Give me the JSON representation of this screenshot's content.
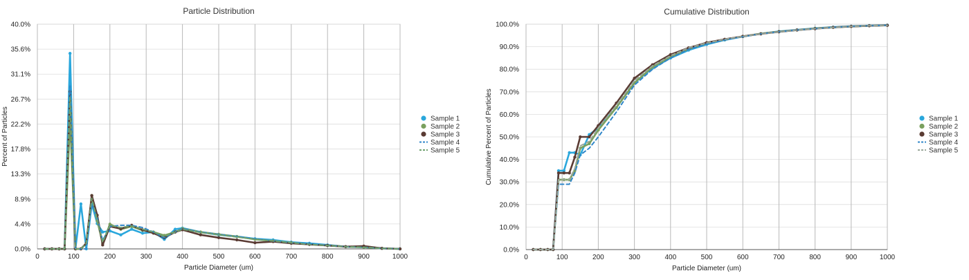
{
  "chart_data": [
    {
      "type": "line",
      "title": "Particle Distribution",
      "xlabel": "Particle Diameter (um)",
      "ylabel": "Percent of Particles",
      "xlim": [
        0,
        1000
      ],
      "ylim": [
        0,
        40
      ],
      "x_ticks": [
        "0",
        "100",
        "200",
        "300",
        "400",
        "500",
        "600",
        "700",
        "800",
        "900",
        "1000"
      ],
      "y_ticks": [
        "0.0%",
        "4.4%",
        "8.9%",
        "13.3%",
        "17.8%",
        "22.2%",
        "26.7%",
        "31.1%",
        "35.6%",
        "40.0%"
      ],
      "grid": "vertical",
      "legend_placement": "right",
      "series": [
        {
          "name": "Sample 1",
          "color": "#2aa7dc",
          "dash": "solid",
          "marker": "circle",
          "x": [
            20,
            40,
            60,
            75,
            90,
            105,
            120,
            135,
            150,
            165,
            180,
            200,
            230,
            260,
            290,
            320,
            350,
            380,
            400,
            450,
            500,
            550,
            600,
            650,
            700,
            750,
            800,
            850,
            900,
            950,
            1000
          ],
          "y": [
            0,
            0,
            0,
            0,
            34.8,
            0,
            8,
            0,
            8,
            4.5,
            3,
            3.2,
            2.5,
            3.5,
            2.8,
            3,
            1.7,
            3.5,
            3.7,
            3,
            2.5,
            2.2,
            1.8,
            1.6,
            1.2,
            1.0,
            0.7,
            0.4,
            0.3,
            0.1,
            0
          ]
        },
        {
          "name": "Sample 2",
          "color": "#7aa05e",
          "dash": "solid",
          "marker": "circle",
          "x": [
            20,
            40,
            60,
            75,
            90,
            105,
            120,
            135,
            150,
            165,
            180,
            200,
            230,
            260,
            290,
            320,
            350,
            380,
            400,
            450,
            500,
            550,
            600,
            650,
            700,
            750,
            800,
            850,
            900,
            950,
            1000
          ],
          "y": [
            0,
            0,
            0,
            0,
            23,
            0,
            0,
            1,
            9.5,
            5,
            1,
            4.4,
            3.5,
            4,
            3.3,
            3,
            2.4,
            3,
            3.6,
            3,
            2.6,
            2.2,
            1.7,
            1.4,
            1.1,
            0.8,
            0.6,
            0.4,
            0.3,
            0.1,
            0
          ]
        },
        {
          "name": "Sample 3",
          "color": "#5a3b33",
          "dash": "solid",
          "marker": "circle",
          "x": [
            20,
            40,
            60,
            75,
            90,
            105,
            120,
            135,
            150,
            165,
            180,
            200,
            230,
            260,
            290,
            320,
            350,
            380,
            400,
            450,
            500,
            550,
            600,
            650,
            700,
            750,
            800,
            850,
            900,
            950,
            1000
          ],
          "y": [
            0,
            0,
            0,
            0,
            28,
            0,
            0,
            1,
            9.5,
            6,
            0.7,
            4,
            3.6,
            4.2,
            3.4,
            2.8,
            2,
            3,
            3.4,
            2.5,
            2,
            1.6,
            1.1,
            1.3,
            1.0,
            0.8,
            0.6,
            0.4,
            0.5,
            0.1,
            0
          ]
        },
        {
          "name": "Sample 4",
          "color": "#2f86c8",
          "dash": "dashed",
          "marker": "none",
          "x": [
            20,
            40,
            60,
            75,
            90,
            105,
            120,
            135,
            150,
            165,
            180,
            200,
            230,
            260,
            290,
            320,
            350,
            380,
            400,
            450,
            500,
            550,
            600,
            650,
            700,
            750,
            800,
            850,
            900,
            950,
            1000
          ],
          "y": [
            0,
            0,
            0,
            0,
            29,
            0,
            0,
            0,
            8,
            5.5,
            1.5,
            4,
            4.2,
            4.2,
            3.8,
            3,
            2,
            3,
            3.6,
            3,
            2.6,
            2.2,
            1.8,
            1.4,
            1.1,
            0.9,
            0.6,
            0.4,
            0.3,
            0.1,
            0
          ]
        },
        {
          "name": "Sample 5",
          "color": "#6fa06f",
          "dash": "dashed",
          "marker": "none",
          "x": [
            20,
            40,
            60,
            75,
            90,
            105,
            120,
            135,
            150,
            165,
            180,
            200,
            230,
            260,
            290,
            320,
            350,
            380,
            400,
            450,
            500,
            550,
            600,
            650,
            700,
            750,
            800,
            850,
            900,
            950,
            1000
          ],
          "y": [
            0,
            0,
            0,
            0,
            27,
            0,
            0,
            1,
            9,
            5.2,
            1.2,
            4.2,
            3.8,
            4.1,
            3.5,
            3,
            2.2,
            3,
            3.5,
            2.9,
            2.5,
            2.1,
            1.7,
            1.4,
            1.1,
            0.8,
            0.6,
            0.4,
            0.3,
            0.1,
            0
          ]
        }
      ]
    },
    {
      "type": "line",
      "title": "Cumulative Distribution",
      "xlabel": "Particle Diameter (um)",
      "ylabel": "Cumulative Percent of Particles",
      "xlim": [
        0,
        1000
      ],
      "ylim": [
        0,
        100
      ],
      "x_ticks": [
        "0",
        "100",
        "200",
        "300",
        "400",
        "500",
        "600",
        "700",
        "800",
        "900",
        "1000"
      ],
      "y_ticks": [
        "0.0%",
        "10.0%",
        "20.0%",
        "30.0%",
        "40.0%",
        "50.0%",
        "60.0%",
        "70.0%",
        "80.0%",
        "90.0%",
        "100.0%"
      ],
      "grid": "vertical",
      "legend_placement": "right",
      "series": [
        {
          "name": "Sample 1",
          "color": "#2aa7dc",
          "dash": "solid",
          "marker": "circle",
          "x": [
            20,
            40,
            60,
            75,
            90,
            105,
            120,
            135,
            150,
            175,
            200,
            250,
            300,
            350,
            400,
            450,
            500,
            550,
            600,
            650,
            700,
            750,
            800,
            850,
            900,
            950,
            1000
          ],
          "y": [
            0,
            0,
            0,
            0,
            35,
            35,
            43,
            43,
            42,
            51,
            54,
            63,
            74,
            80.5,
            85,
            88.5,
            91,
            93,
            94.5,
            95.8,
            96.8,
            97.5,
            98.2,
            98.7,
            99.1,
            99.4,
            99.6
          ]
        },
        {
          "name": "Sample 2",
          "color": "#7aa05e",
          "dash": "solid",
          "marker": "circle",
          "x": [
            20,
            40,
            60,
            75,
            90,
            105,
            120,
            135,
            150,
            175,
            200,
            250,
            300,
            350,
            400,
            450,
            500,
            550,
            600,
            650,
            700,
            750,
            800,
            850,
            900,
            950,
            1000
          ],
          "y": [
            0,
            0,
            0,
            0,
            31,
            31,
            31,
            35,
            45,
            47,
            53,
            63,
            74,
            81,
            85.5,
            89,
            91.5,
            93.2,
            94.6,
            95.8,
            96.7,
            97.4,
            98.1,
            98.6,
            99,
            99.3,
            99.5
          ]
        },
        {
          "name": "Sample 3",
          "color": "#5a3b33",
          "dash": "solid",
          "marker": "circle",
          "x": [
            20,
            40,
            60,
            75,
            90,
            105,
            120,
            135,
            150,
            175,
            200,
            250,
            300,
            350,
            400,
            450,
            500,
            550,
            600,
            650,
            700,
            750,
            800,
            850,
            900,
            950,
            1000
          ],
          "y": [
            0,
            0,
            0,
            0,
            34,
            34,
            34,
            41,
            50,
            50,
            55,
            65,
            76,
            82,
            86.5,
            89.5,
            91.8,
            93.3,
            94.6,
            95.7,
            96.6,
            97.4,
            98,
            98.6,
            99,
            99.3,
            99.5
          ]
        },
        {
          "name": "Sample 4",
          "color": "#2f86c8",
          "dash": "dashed",
          "marker": "none",
          "x": [
            20,
            40,
            60,
            75,
            90,
            105,
            120,
            135,
            150,
            175,
            200,
            250,
            300,
            350,
            400,
            450,
            500,
            550,
            600,
            650,
            700,
            750,
            800,
            850,
            900,
            950,
            1000
          ],
          "y": [
            0,
            0,
            0,
            0,
            29,
            29,
            29,
            34,
            42,
            45,
            50,
            61,
            73,
            80,
            85,
            88.8,
            91.2,
            93,
            94.5,
            95.7,
            96.6,
            97.4,
            98,
            98.6,
            99,
            99.3,
            99.5
          ]
        },
        {
          "name": "Sample 5",
          "color": "#9aa79a",
          "dash": "dashed",
          "marker": "none",
          "x": [
            20,
            40,
            60,
            75,
            90,
            105,
            120,
            135,
            150,
            175,
            200,
            250,
            300,
            350,
            400,
            450,
            500,
            550,
            600,
            650,
            700,
            750,
            800,
            850,
            900,
            950,
            1000
          ],
          "y": [
            0,
            0,
            0,
            0,
            31,
            31,
            31,
            36,
            46,
            48,
            54,
            64,
            75,
            81.5,
            86,
            89.5,
            91.7,
            93.3,
            94.6,
            95.7,
            96.6,
            97.4,
            98,
            98.6,
            99,
            99.3,
            99.5
          ]
        }
      ]
    }
  ]
}
